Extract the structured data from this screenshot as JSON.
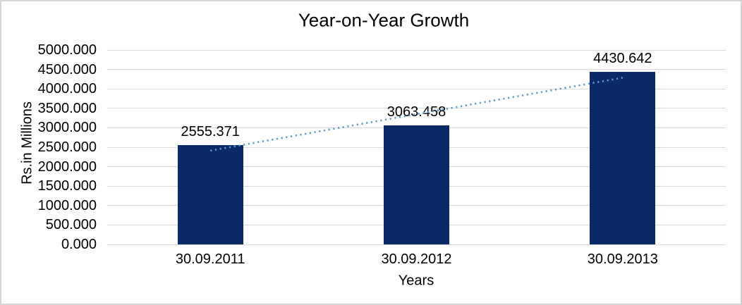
{
  "chart_data": {
    "type": "bar",
    "title": "Year-on-Year Growth",
    "xlabel": "Years",
    "ylabel": "Rs.in Millions",
    "categories": [
      "30.09.2011",
      "30.09.2012",
      "30.09.2013"
    ],
    "values": [
      2555.371,
      3063.458,
      4430.642
    ],
    "data_labels": [
      "2555.371",
      "3063.458",
      "4430.642"
    ],
    "ylim": [
      0,
      5000
    ],
    "y_tick_step": 500,
    "y_tick_decimals": 3,
    "grid": "horizontal",
    "legend": "none",
    "trendline": {
      "type": "linear",
      "style": "dotted"
    },
    "colors": {
      "bar": "#0A2A66",
      "trendline": "#5B9BD5",
      "gridline": "#D9D9D9",
      "text": "#000000",
      "frame_border": "#D5D5D7",
      "background": "#FFFFFF"
    }
  }
}
